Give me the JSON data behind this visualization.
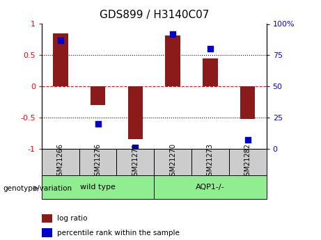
{
  "title": "GDS899 / H3140C07",
  "samples": [
    "GSM21266",
    "GSM21276",
    "GSM21279",
    "GSM21270",
    "GSM21273",
    "GSM21282"
  ],
  "log_ratios": [
    0.85,
    -0.3,
    -0.85,
    0.82,
    0.45,
    -0.52
  ],
  "percentile_ranks": [
    87,
    20,
    1,
    92,
    80,
    7
  ],
  "bar_color": "#8B1A1A",
  "dot_color": "#0000CC",
  "bar_width": 0.4,
  "ylim": [
    -1,
    1
  ],
  "right_ylim": [
    0,
    100
  ],
  "right_yticks": [
    0,
    25,
    50,
    75,
    100
  ],
  "right_yticklabels": [
    "0",
    "25",
    "50",
    "75",
    "100%"
  ],
  "left_yticks": [
    -1,
    -0.5,
    0,
    0.5,
    1
  ],
  "left_yticklabels": [
    "-1",
    "-0.5",
    "0",
    "0.5",
    "1"
  ],
  "hlines": [
    0.5,
    0,
    -0.5
  ],
  "hline_styles": [
    "dotted",
    "dashed",
    "dotted"
  ],
  "hline_colors": [
    "black",
    "red",
    "black"
  ],
  "group_label": "genotype/variation",
  "group_names": [
    "wild type",
    "AQP1-/-"
  ],
  "group_color": "#90EE90",
  "legend_items": [
    {
      "label": "log ratio",
      "color": "#8B1A1A"
    },
    {
      "label": "percentile rank within the sample",
      "color": "#0000CC"
    }
  ]
}
